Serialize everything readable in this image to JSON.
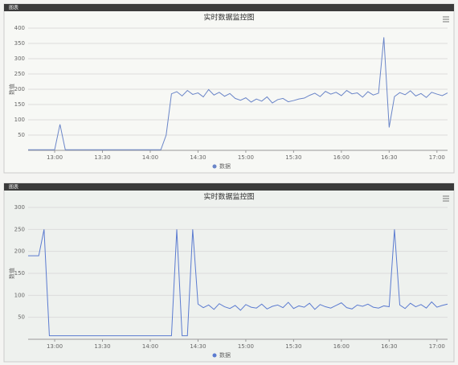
{
  "chart_data": [
    {
      "type": "line",
      "tab": "图表",
      "title": "实时数据监控图",
      "y_label": "数值",
      "legend": "数据",
      "grid": true,
      "ylim": [
        0,
        400
      ],
      "yticks": [
        50,
        100,
        150,
        200,
        250,
        300,
        350,
        400
      ],
      "xlim": [
        0,
        79
      ],
      "xticks": [
        {
          "value": 5,
          "label": "13:00"
        },
        {
          "value": 14,
          "label": "13:30"
        },
        {
          "value": 23,
          "label": "14:00"
        },
        {
          "value": 32,
          "label": "14:30"
        },
        {
          "value": 41,
          "label": "15:00"
        },
        {
          "value": 50,
          "label": "15:30"
        },
        {
          "value": 59,
          "label": "16:00"
        },
        {
          "value": 68,
          "label": "16:30"
        },
        {
          "value": 77,
          "label": "17:00"
        }
      ],
      "series": [
        {
          "name": "数据",
          "color": "#6a85c8",
          "values": [
            2,
            2,
            2,
            2,
            2,
            2,
            85,
            2,
            2,
            2,
            2,
            2,
            2,
            2,
            2,
            2,
            2,
            2,
            2,
            2,
            2,
            2,
            2,
            2,
            2,
            2,
            50,
            185,
            192,
            178,
            196,
            183,
            188,
            175,
            199,
            181,
            190,
            177,
            186,
            170,
            164,
            172,
            158,
            168,
            161,
            175,
            155,
            166,
            170,
            159,
            163,
            168,
            171,
            180,
            187,
            176,
            193,
            184,
            190,
            179,
            196,
            185,
            188,
            174,
            192,
            181,
            187,
            370,
            75,
            176,
            189,
            182,
            195,
            178,
            186,
            173,
            190,
            184,
            179,
            188
          ]
        }
      ]
    },
    {
      "type": "line",
      "tab": "图表",
      "title": "实时数据监控图",
      "y_label": "数值",
      "legend": "数据",
      "grid": true,
      "ylim": [
        0,
        300
      ],
      "yticks": [
        50,
        100,
        150,
        200,
        250,
        300
      ],
      "xlim": [
        0,
        79
      ],
      "xticks": [
        {
          "value": 5,
          "label": "13:00"
        },
        {
          "value": 14,
          "label": "13:30"
        },
        {
          "value": 23,
          "label": "14:00"
        },
        {
          "value": 32,
          "label": "14:30"
        },
        {
          "value": 41,
          "label": "15:00"
        },
        {
          "value": 50,
          "label": "15:30"
        },
        {
          "value": 59,
          "label": "16:00"
        },
        {
          "value": 68,
          "label": "16:30"
        },
        {
          "value": 77,
          "label": "17:00"
        }
      ],
      "series": [
        {
          "name": "数据",
          "color": "#5b7bd0",
          "values": [
            190,
            190,
            190,
            250,
            8,
            8,
            8,
            8,
            8,
            8,
            8,
            8,
            8,
            8,
            8,
            8,
            8,
            8,
            8,
            8,
            8,
            8,
            8,
            8,
            8,
            8,
            8,
            8,
            250,
            8,
            8,
            250,
            80,
            72,
            78,
            68,
            81,
            74,
            70,
            77,
            66,
            79,
            73,
            71,
            80,
            69,
            75,
            78,
            72,
            84,
            70,
            76,
            73,
            82,
            68,
            79,
            74,
            71,
            77,
            83,
            72,
            69,
            78,
            75,
            80,
            73,
            71,
            76,
            74,
            250,
            78,
            70,
            82,
            74,
            79,
            71,
            85,
            73,
            77,
            80
          ]
        }
      ]
    }
  ]
}
